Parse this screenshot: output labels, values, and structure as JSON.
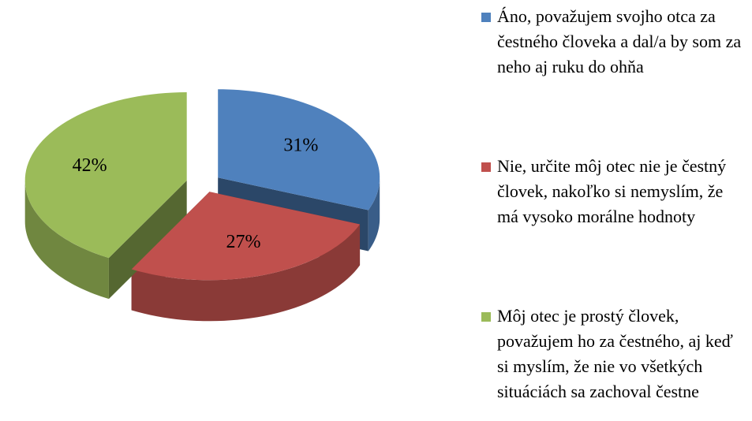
{
  "chart_data": {
    "type": "pie",
    "categories": [
      "Áno, považujem svojho otca za čestného človeka a dal/a by som za neho aj ruku do ohňa",
      "Nie, určite môj otec nie je čestný človek, nakoľko si nemyslím, že má vysoko morálne hodnoty",
      "Môj otec je prostý človek, považujem ho za čestného, aj keď si myslím, že nie vo všetkých situáciách sa zachoval čestne"
    ],
    "values": [
      31,
      27,
      42
    ],
    "value_labels": [
      "31%",
      "27%",
      "42%"
    ],
    "colors": [
      "#4f81bd",
      "#c0504d",
      "#9bbb59"
    ],
    "legend": "right"
  }
}
